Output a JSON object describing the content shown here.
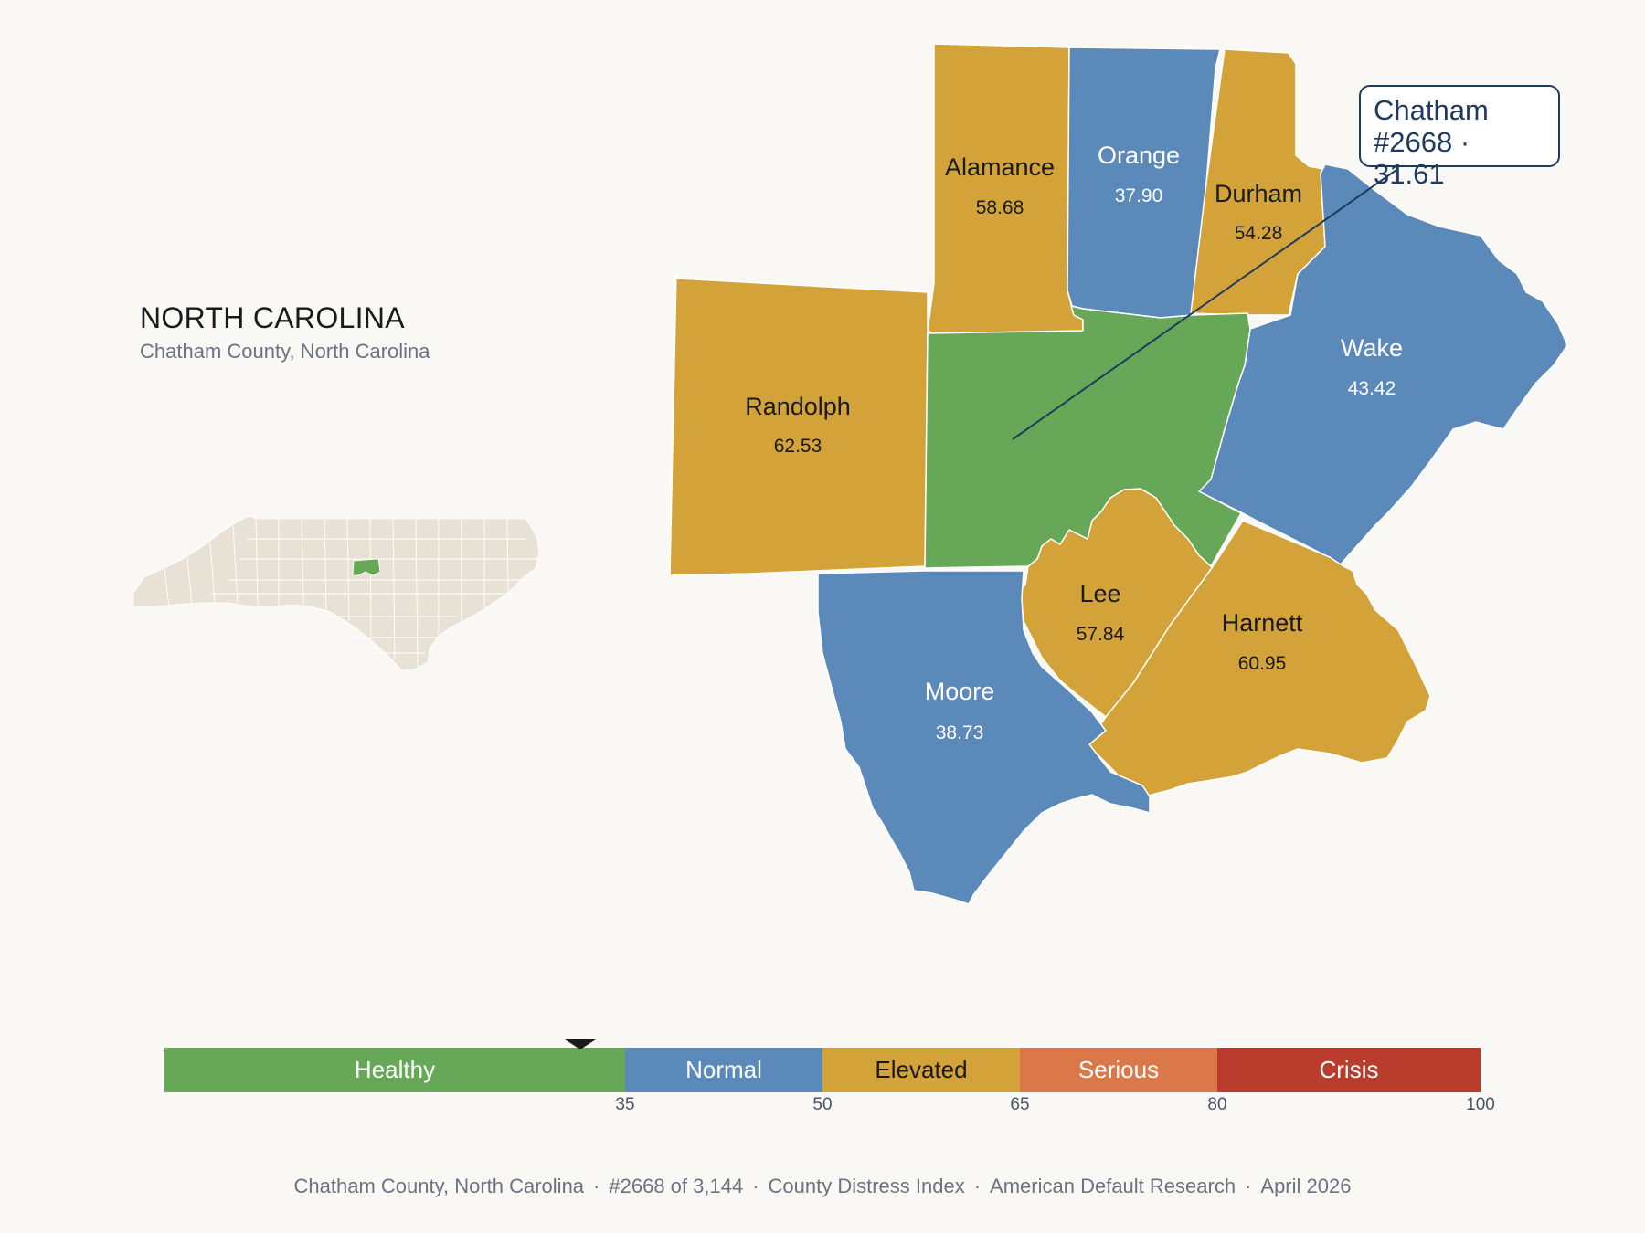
{
  "header": {
    "state": "NORTH CAROLINA",
    "subtitle": "Chatham County, North Carolina"
  },
  "callout": {
    "line1": "Chatham",
    "line2": "#2668 · 31.61"
  },
  "colors": {
    "healthy": "#66a758",
    "normal": "#5b89b9",
    "elevated": "#d3a33a",
    "serious": "#db7849",
    "crisis": "#b93c2c",
    "outline": "#1e3a5f",
    "inset_land": "#e8e2d6"
  },
  "counties": [
    {
      "name": "Alamance",
      "value": "58.68",
      "band": "elevated"
    },
    {
      "name": "Orange",
      "value": "37.90",
      "band": "normal"
    },
    {
      "name": "Durham",
      "value": "54.28",
      "band": "elevated"
    },
    {
      "name": "Wake",
      "value": "43.42",
      "band": "normal"
    },
    {
      "name": "Randolph",
      "value": "62.53",
      "band": "elevated"
    },
    {
      "name": "Chatham",
      "value": "31.61",
      "band": "healthy",
      "selected": true
    },
    {
      "name": "Lee",
      "value": "57.84",
      "band": "elevated"
    },
    {
      "name": "Harnett",
      "value": "60.95",
      "band": "elevated"
    },
    {
      "name": "Moore",
      "value": "38.73",
      "band": "normal"
    }
  ],
  "legend": {
    "pointer_value": 31.61,
    "bands": [
      {
        "label": "Healthy",
        "min": 0,
        "max": 35,
        "color": "#66a758",
        "text_color": "#ffffff"
      },
      {
        "label": "Normal",
        "min": 35,
        "max": 50,
        "color": "#5b89b9",
        "text_color": "#ffffff"
      },
      {
        "label": "Elevated",
        "min": 50,
        "max": 65,
        "color": "#d3a33a",
        "text_color": "#1a1a1a"
      },
      {
        "label": "Serious",
        "min": 65,
        "max": 80,
        "color": "#db7849",
        "text_color": "#ffffff"
      },
      {
        "label": "Crisis",
        "min": 80,
        "max": 100,
        "color": "#b93c2c",
        "text_color": "#ffffff"
      }
    ],
    "ticks": [
      "35",
      "50",
      "65",
      "80",
      "100"
    ]
  },
  "footer": {
    "county": "Chatham County, North Carolina",
    "rank": "#2668 of 3,144",
    "index": "County Distress Index",
    "source": "American Default Research",
    "date": "April 2026"
  }
}
